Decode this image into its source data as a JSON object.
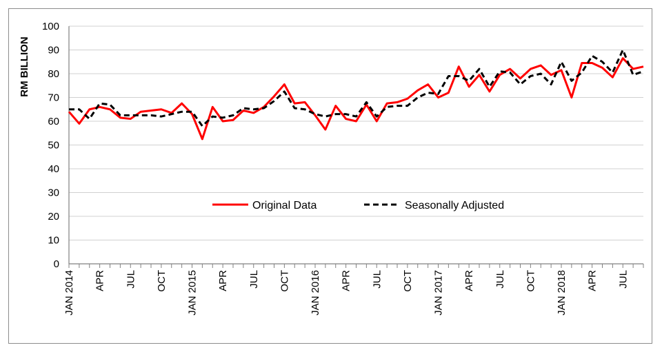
{
  "chart_data": {
    "type": "line",
    "title": "",
    "xlabel": "",
    "ylabel": "RM BILLION",
    "ylim": [
      0,
      100
    ],
    "yticks": [
      0,
      10,
      20,
      30,
      40,
      50,
      60,
      70,
      80,
      90,
      100
    ],
    "grid": true,
    "legend_position": "center",
    "x": [
      "2014-01",
      "2014-02",
      "2014-03",
      "2014-04",
      "2014-05",
      "2014-06",
      "2014-07",
      "2014-08",
      "2014-09",
      "2014-10",
      "2014-11",
      "2014-12",
      "2015-01",
      "2015-02",
      "2015-03",
      "2015-04",
      "2015-05",
      "2015-06",
      "2015-07",
      "2015-08",
      "2015-09",
      "2015-10",
      "2015-11",
      "2015-12",
      "2016-01",
      "2016-02",
      "2016-03",
      "2016-04",
      "2016-05",
      "2016-06",
      "2016-07",
      "2016-08",
      "2016-09",
      "2016-10",
      "2016-11",
      "2016-12",
      "2017-01",
      "2017-02",
      "2017-03",
      "2017-04",
      "2017-05",
      "2017-06",
      "2017-07",
      "2017-08",
      "2017-09",
      "2017-10",
      "2017-11",
      "2017-12",
      "2018-01",
      "2018-02",
      "2018-03",
      "2018-04",
      "2018-05",
      "2018-06",
      "2018-07",
      "2018-08",
      "2018-09"
    ],
    "xtick_labels": [
      {
        "index": 0,
        "label": "JAN 2014"
      },
      {
        "index": 3,
        "label": "APR"
      },
      {
        "index": 6,
        "label": "JUL"
      },
      {
        "index": 9,
        "label": "OCT"
      },
      {
        "index": 12,
        "label": "JAN 2015"
      },
      {
        "index": 15,
        "label": "APR"
      },
      {
        "index": 18,
        "label": "JUL"
      },
      {
        "index": 21,
        "label": "OCT"
      },
      {
        "index": 24,
        "label": "JAN 2016"
      },
      {
        "index": 27,
        "label": "APR"
      },
      {
        "index": 30,
        "label": "JUL"
      },
      {
        "index": 33,
        "label": "OCT"
      },
      {
        "index": 36,
        "label": "JAN 2017"
      },
      {
        "index": 39,
        "label": "APR"
      },
      {
        "index": 42,
        "label": "JUL"
      },
      {
        "index": 45,
        "label": "OCT"
      },
      {
        "index": 48,
        "label": "JAN 2018"
      },
      {
        "index": 51,
        "label": "APR"
      },
      {
        "index": 54,
        "label": "JUL"
      }
    ],
    "series": [
      {
        "name": "Original Data",
        "color": "#ff0000",
        "style": "solid",
        "values": [
          64,
          59,
          65,
          66,
          65,
          61.5,
          61,
          64,
          64.5,
          65,
          63.5,
          67.5,
          63,
          52.5,
          66,
          60,
          60.5,
          64.5,
          63.5,
          66,
          70.5,
          75.5,
          67.5,
          68,
          62.5,
          56.5,
          66.5,
          61,
          60,
          67,
          60,
          67.5,
          68,
          69.5,
          73,
          75.5,
          70,
          72,
          83,
          74.5,
          79.5,
          72.5,
          79.5,
          82,
          78,
          82,
          83.5,
          79.5,
          81.5,
          70,
          84.5,
          84.5,
          82.5,
          78.5,
          86.5,
          82,
          83
        ]
      },
      {
        "name": "Seasonally Adjusted",
        "color": "#000000",
        "style": "dashed",
        "values": [
          65,
          65,
          61,
          67.5,
          67,
          62.5,
          62.5,
          62.5,
          62.5,
          62,
          63,
          64,
          64,
          58,
          62,
          61.5,
          62.5,
          65.5,
          65,
          65.5,
          68.5,
          72.5,
          65.5,
          65,
          63,
          62,
          63,
          63,
          62,
          68,
          62,
          66,
          66.5,
          66.5,
          70,
          72,
          71.5,
          79,
          79,
          77,
          82,
          74.5,
          81,
          80.5,
          75.5,
          79,
          80,
          75.5,
          85,
          77,
          80.5,
          87.5,
          85,
          80.5,
          90,
          79.5,
          81
        ]
      }
    ]
  }
}
